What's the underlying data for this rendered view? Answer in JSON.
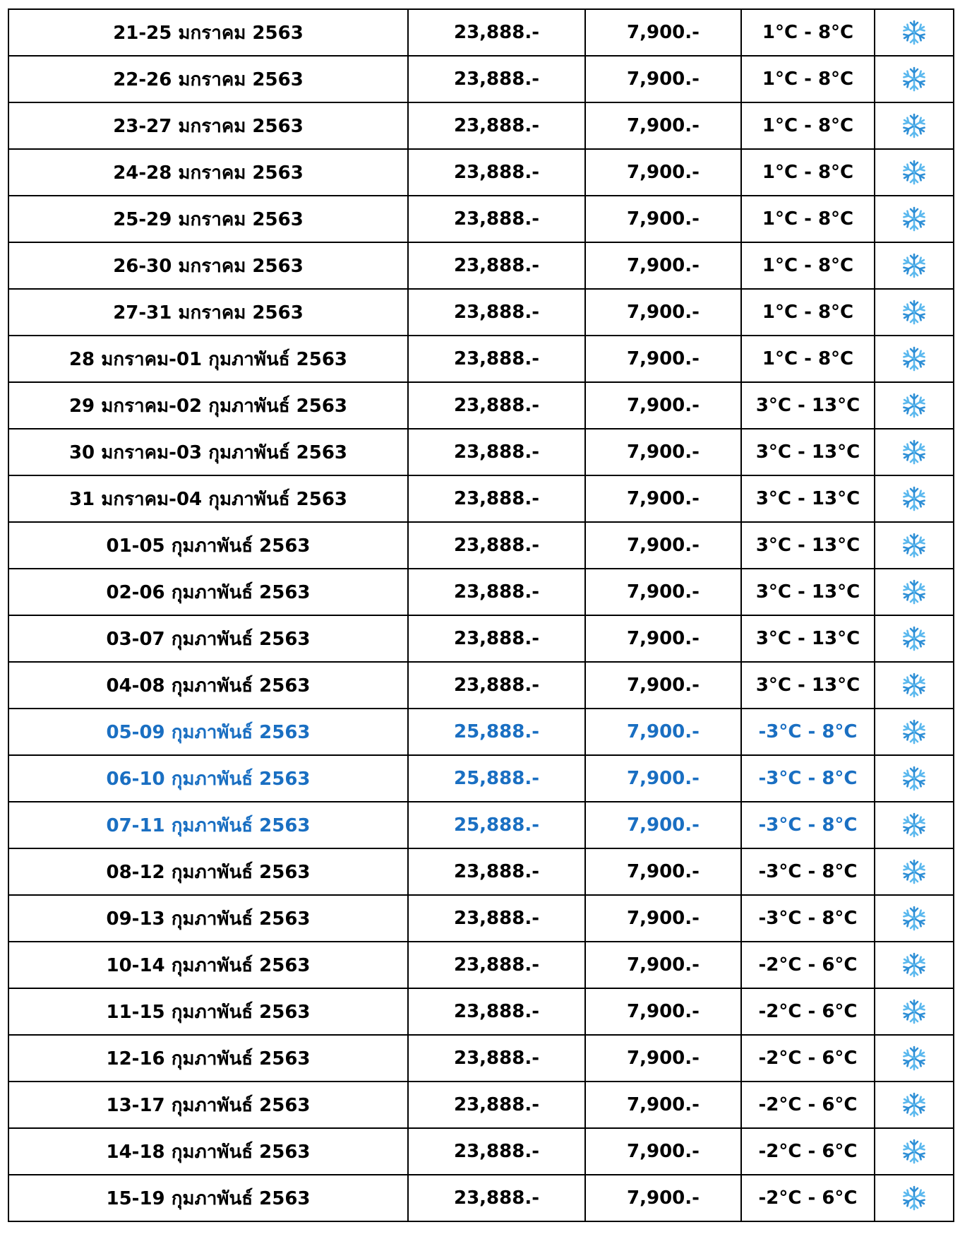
{
  "table": {
    "highlight_color": "#1a6fc2",
    "highlight_rows": [
      15,
      16,
      17
    ],
    "rows": [
      [
        "21-25 มกราคม 2563",
        "23,888.-",
        "7,900.-",
        "1°C - 8°C"
      ],
      [
        "22-26 มกราคม 2563",
        "23,888.-",
        "7,900.-",
        "1°C - 8°C"
      ],
      [
        "23-27 มกราคม 2563",
        "23,888.-",
        "7,900.-",
        "1°C - 8°C"
      ],
      [
        "24-28 มกราคม 2563",
        "23,888.-",
        "7,900.-",
        "1°C - 8°C"
      ],
      [
        "25-29 มกราคม 2563",
        "23,888.-",
        "7,900.-",
        "1°C - 8°C"
      ],
      [
        "26-30 มกราคม 2563",
        "23,888.-",
        "7,900.-",
        "1°C - 8°C"
      ],
      [
        "27-31 มกราคม 2563",
        "23,888.-",
        "7,900.-",
        "1°C - 8°C"
      ],
      [
        "28 มกราคม-01 กุมภาพันธ์ 2563",
        "23,888.-",
        "7,900.-",
        "1°C - 8°C"
      ],
      [
        "29 มกราคม-02 กุมภาพันธ์ 2563",
        "23,888.-",
        "7,900.-",
        "3°C - 13°C"
      ],
      [
        "30 มกราคม-03 กุมภาพันธ์ 2563",
        "23,888.-",
        "7,900.-",
        "3°C - 13°C"
      ],
      [
        "31 มกราคม-04 กุมภาพันธ์ 2563",
        "23,888.-",
        "7,900.-",
        "3°C - 13°C"
      ],
      [
        "01-05 กุมภาพันธ์ 2563",
        "23,888.-",
        "7,900.-",
        "3°C - 13°C"
      ],
      [
        "02-06 กุมภาพันธ์ 2563",
        "23,888.-",
        "7,900.-",
        "3°C - 13°C"
      ],
      [
        "03-07 กุมภาพันธ์ 2563",
        "23,888.-",
        "7,900.-",
        "3°C - 13°C"
      ],
      [
        "04-08 กุมภาพันธ์ 2563",
        "23,888.-",
        "7,900.-",
        "3°C - 13°C"
      ],
      [
        "05-09 กุมภาพันธ์ 2563",
        "25,888.-",
        "7,900.-",
        "-3°C - 8°C"
      ],
      [
        "06-10 กุมภาพันธ์ 2563",
        "25,888.-",
        "7,900.-",
        "-3°C - 8°C"
      ],
      [
        "07-11 กุมภาพันธ์ 2563",
        "25,888.-",
        "7,900.-",
        "-3°C - 8°C"
      ],
      [
        "08-12 กุมภาพันธ์ 2563",
        "23,888.-",
        "7,900.-",
        "-3°C - 8°C"
      ],
      [
        "09-13 กุมภาพันธ์ 2563",
        "23,888.-",
        "7,900.-",
        "-3°C - 8°C"
      ],
      [
        "10-14 กุมภาพันธ์ 2563",
        "23,888.-",
        "7,900.-",
        "-2°C - 6°C"
      ],
      [
        "11-15 กุมภาพันธ์ 2563",
        "23,888.-",
        "7,900.-",
        "-2°C - 6°C"
      ],
      [
        "12-16 กุมภาพันธ์ 2563",
        "23,888.-",
        "7,900.-",
        "-2°C - 6°C"
      ],
      [
        "13-17 กุมภาพันธ์ 2563",
        "23,888.-",
        "7,900.-",
        "-2°C - 6°C"
      ],
      [
        "14-18 กุมภาพันธ์ 2563",
        "23,888.-",
        "7,900.-",
        "-2°C - 6°C"
      ],
      [
        "15-19 กุมภาพันธ์ 2563",
        "23,888.-",
        "7,900.-",
        "-2°C - 6°C"
      ]
    ]
  }
}
